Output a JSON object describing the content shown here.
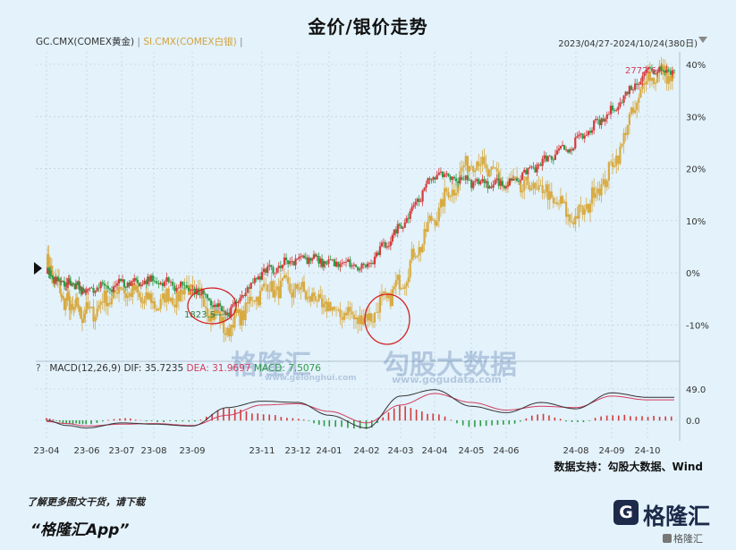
{
  "title": "金价/银价走势",
  "legend": {
    "gold": "GC.CMX(COMEX黄金)",
    "separator": "|",
    "silver": "SI.CMX(COMEX白银)",
    "end": "|"
  },
  "date_range": "2023/04/27-2024/10/24(380日)",
  "source": "数据支持：勾股大数据、Wind",
  "footer": {
    "note": "了解更多图文干货，请下载",
    "app": "“格隆汇App”"
  },
  "brand": {
    "logo_char": "G",
    "name": "格隆汇",
    "small": "格隆汇"
  },
  "watermark": {
    "left_name": "格隆汇",
    "left_url": "www.gelonghui.com",
    "right_name": "勾股大数据",
    "right_url": "www.gogudata.com"
  },
  "colors": {
    "up": "#d63a3a",
    "down": "#2f9b46",
    "silver": "#d8ab42",
    "dea": "#d43c5c",
    "dif": "#333333",
    "circle": "#d62020",
    "grid": "#b7c9d4"
  },
  "chart_data": [
    {
      "type": "line",
      "title": "金价/银价走势",
      "x_tick_labels": [
        "23-04",
        "23-06",
        "23-07",
        "23-08",
        "23-09",
        "23-11",
        "23-12",
        "24-01",
        "24-02",
        "24-03",
        "24-04",
        "24-05",
        "24-06",
        "24-08",
        "24-09",
        "24-10"
      ],
      "y_axis_right": {
        "ticks": [
          "40%",
          "30%",
          "20%",
          "10%",
          "0%",
          "-10%"
        ],
        "range": [
          -15,
          41
        ]
      },
      "series": [
        {
          "name": "GC.CMX(COMEX黄金)",
          "style": "candlestick",
          "monthly_change_pct": [
            {
              "x": "23-04",
              "y": 0
            },
            {
              "x": "23-05",
              "y": -2
            },
            {
              "x": "23-06",
              "y": -3.5
            },
            {
              "x": "23-07",
              "y": -2
            },
            {
              "x": "23-08",
              "y": -1.5
            },
            {
              "x": "23-09",
              "y": -3
            },
            {
              "x": "23-10",
              "y": -8
            },
            {
              "x": "23-11",
              "y": 0
            },
            {
              "x": "23-12",
              "y": 3
            },
            {
              "x": "24-01",
              "y": 2
            },
            {
              "x": "24-02",
              "y": 1
            },
            {
              "x": "24-03",
              "y": 9
            },
            {
              "x": "24-04",
              "y": 19
            },
            {
              "x": "24-05",
              "y": 17.5
            },
            {
              "x": "24-06",
              "y": 17
            },
            {
              "x": "24-07",
              "y": 21
            },
            {
              "x": "24-08",
              "y": 25
            },
            {
              "x": "24-09",
              "y": 31
            },
            {
              "x": "24-10",
              "y": 39
            }
          ],
          "labels": [
            {
              "x": "23-10",
              "text": "1823.5"
            },
            {
              "x": "24-10",
              "text": "2772.6"
            }
          ]
        },
        {
          "name": "SI.CMX(COMEX白银)",
          "style": "candlestick",
          "monthly_change_pct": [
            {
              "x": "23-04",
              "y": 2
            },
            {
              "x": "23-05",
              "y": -6
            },
            {
              "x": "23-06",
              "y": -8
            },
            {
              "x": "23-07",
              "y": -3
            },
            {
              "x": "23-08",
              "y": -6
            },
            {
              "x": "23-09",
              "y": -3
            },
            {
              "x": "23-10",
              "y": -11
            },
            {
              "x": "23-11",
              "y": -3
            },
            {
              "x": "23-12",
              "y": -3
            },
            {
              "x": "24-01",
              "y": -7
            },
            {
              "x": "24-02",
              "y": -9
            },
            {
              "x": "24-03",
              "y": -2
            },
            {
              "x": "24-04",
              "y": 11
            },
            {
              "x": "24-05",
              "y": 22
            },
            {
              "x": "24-06",
              "y": 17
            },
            {
              "x": "24-07",
              "y": 16
            },
            {
              "x": "24-08",
              "y": 10
            },
            {
              "x": "24-09",
              "y": 20
            },
            {
              "x": "24-10",
              "y": 38
            }
          ]
        }
      ],
      "annotations": [
        "red circle around 23-10 low",
        "red circle around 24-02 low"
      ]
    },
    {
      "type": "bar",
      "legend": {
        "q": "?",
        "params": "MACD(12,26,9)",
        "dif": "DIF: 35.7235",
        "dea": "DEA: 31.9697",
        "macd": "MACD: 7.5076"
      },
      "y_axis_right": {
        "ticks": [
          "49.0",
          "0.0"
        ],
        "range": [
          -25,
          49
        ]
      },
      "dif": [
        {
          "x": "23-04",
          "y": 0
        },
        {
          "x": "23-05",
          "y": -8
        },
        {
          "x": "23-06",
          "y": -12
        },
        {
          "x": "23-07",
          "y": -4
        },
        {
          "x": "23-08",
          "y": -6
        },
        {
          "x": "23-09",
          "y": -9
        },
        {
          "x": "23-10",
          "y": 20
        },
        {
          "x": "23-11",
          "y": 30
        },
        {
          "x": "23-12",
          "y": 28
        },
        {
          "x": "24-01",
          "y": 8
        },
        {
          "x": "24-02",
          "y": -12
        },
        {
          "x": "24-03",
          "y": 38
        },
        {
          "x": "24-04",
          "y": 48
        },
        {
          "x": "24-05",
          "y": 22
        },
        {
          "x": "24-06",
          "y": 12
        },
        {
          "x": "24-07",
          "y": 28
        },
        {
          "x": "24-08",
          "y": 18
        },
        {
          "x": "24-09",
          "y": 43
        },
        {
          "x": "24-10",
          "y": 36
        }
      ],
      "dea": [
        {
          "x": "23-04",
          "y": -2
        },
        {
          "x": "23-05",
          "y": -5
        },
        {
          "x": "23-06",
          "y": -9
        },
        {
          "x": "23-07",
          "y": -6
        },
        {
          "x": "23-08",
          "y": -5
        },
        {
          "x": "23-09",
          "y": -8
        },
        {
          "x": "23-10",
          "y": 8
        },
        {
          "x": "23-11",
          "y": 24
        },
        {
          "x": "23-12",
          "y": 26
        },
        {
          "x": "24-01",
          "y": 14
        },
        {
          "x": "24-02",
          "y": -4
        },
        {
          "x": "24-03",
          "y": 24
        },
        {
          "x": "24-04",
          "y": 42
        },
        {
          "x": "24-05",
          "y": 28
        },
        {
          "x": "24-06",
          "y": 16
        },
        {
          "x": "24-07",
          "y": 22
        },
        {
          "x": "24-08",
          "y": 20
        },
        {
          "x": "24-09",
          "y": 38
        },
        {
          "x": "24-10",
          "y": 32
        }
      ]
    }
  ]
}
